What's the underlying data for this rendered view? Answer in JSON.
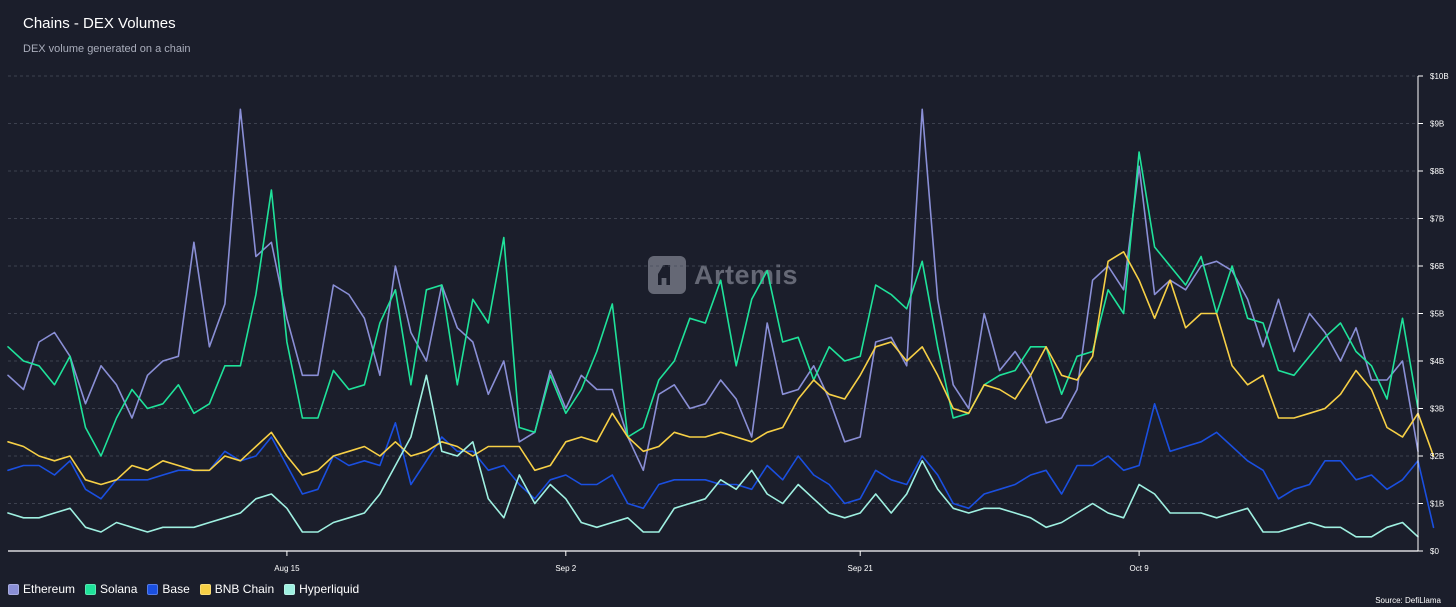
{
  "header": {
    "title": "Chains - DEX Volumes",
    "subtitle": "DEX volume generated on a chain"
  },
  "watermark": "Artemis",
  "source": "Source: DefiLlama",
  "chart_data": {
    "type": "line",
    "title": "Chains - DEX Volumes",
    "subtitle": "DEX volume generated on a chain",
    "xlabel": "",
    "ylabel": "",
    "ylim": [
      0,
      10
    ],
    "y_unit": "$B",
    "y_ticks": [
      0,
      1,
      2,
      3,
      4,
      5,
      6,
      7,
      8,
      9,
      10
    ],
    "y_tick_labels": [
      "$0",
      "$1B",
      "$2B",
      "$3B",
      "$4B",
      "$5B",
      "$6B",
      "$7B",
      "$8B",
      "$9B",
      "$10B"
    ],
    "x_ticks": [
      {
        "index": 18,
        "label": "Aug 15"
      },
      {
        "index": 36,
        "label": "Sep 2"
      },
      {
        "index": 55,
        "label": "Sep 21"
      },
      {
        "index": 73,
        "label": "Oct 9"
      }
    ],
    "grid": true,
    "legend_position": "bottom-left",
    "series": [
      {
        "name": "Ethereum",
        "color": "#8a8fd6",
        "values": [
          3.7,
          3.4,
          4.4,
          4.6,
          4.1,
          3.1,
          3.9,
          3.5,
          2.8,
          3.7,
          4.0,
          4.1,
          6.5,
          4.3,
          5.2,
          9.3,
          6.2,
          6.5,
          4.9,
          3.7,
          3.7,
          5.6,
          5.4,
          4.9,
          3.7,
          6.0,
          4.6,
          4.0,
          5.6,
          4.7,
          4.4,
          3.3,
          4.0,
          2.3,
          2.5,
          3.8,
          3.0,
          3.7,
          3.4,
          3.4,
          2.4,
          1.7,
          3.3,
          3.5,
          3.0,
          3.1,
          3.6,
          3.2,
          2.4,
          4.8,
          3.3,
          3.4,
          3.9,
          3.2,
          2.3,
          2.4,
          4.4,
          4.5,
          3.9,
          9.3,
          5.3,
          3.5,
          3.0,
          5.0,
          3.8,
          4.2,
          3.7,
          2.7,
          2.8,
          3.4,
          5.7,
          6.0,
          5.5,
          8.1,
          5.4,
          5.7,
          5.5,
          6.0,
          6.1,
          5.9,
          5.3,
          4.3,
          5.3,
          4.2,
          5.0,
          4.6,
          4.0,
          4.7,
          3.6,
          3.6,
          4.0,
          2.1
        ]
      },
      {
        "name": "Solana",
        "color": "#1fe29a",
        "values": [
          4.3,
          4.0,
          3.9,
          3.5,
          4.1,
          2.6,
          2.0,
          2.8,
          3.4,
          3.0,
          3.1,
          3.5,
          2.9,
          3.1,
          3.9,
          3.9,
          5.4,
          7.6,
          4.4,
          2.8,
          2.8,
          3.8,
          3.4,
          3.5,
          4.8,
          5.5,
          3.5,
          5.5,
          5.6,
          3.5,
          5.3,
          4.8,
          6.6,
          2.6,
          2.5,
          3.7,
          2.9,
          3.4,
          4.2,
          5.2,
          2.4,
          2.6,
          3.6,
          4.0,
          4.9,
          4.8,
          5.7,
          3.9,
          5.3,
          5.9,
          4.4,
          4.5,
          3.6,
          4.3,
          4.0,
          4.1,
          5.6,
          5.4,
          5.1,
          6.1,
          4.3,
          2.8,
          2.9,
          3.5,
          3.7,
          3.8,
          4.3,
          4.3,
          3.3,
          4.1,
          4.2,
          5.5,
          5.0,
          8.4,
          6.4,
          6.0,
          5.6,
          6.2,
          5.0,
          6.0,
          4.9,
          4.8,
          3.8,
          3.7,
          4.1,
          4.5,
          4.8,
          4.2,
          3.9,
          3.2,
          4.9,
          3.0
        ]
      },
      {
        "name": "Base",
        "color": "#1a4fe0",
        "values": [
          1.7,
          1.8,
          1.8,
          1.6,
          1.9,
          1.3,
          1.1,
          1.5,
          1.5,
          1.5,
          1.6,
          1.7,
          1.7,
          1.7,
          2.1,
          1.9,
          2.0,
          2.4,
          1.8,
          1.2,
          1.3,
          2.0,
          1.8,
          1.9,
          1.8,
          2.7,
          1.4,
          1.9,
          2.4,
          2.1,
          2.1,
          1.7,
          1.8,
          1.4,
          1.1,
          1.5,
          1.6,
          1.4,
          1.4,
          1.6,
          1.0,
          0.9,
          1.4,
          1.5,
          1.5,
          1.5,
          1.4,
          1.4,
          1.3,
          1.8,
          1.5,
          2.0,
          1.6,
          1.4,
          1.0,
          1.1,
          1.7,
          1.5,
          1.4,
          2.0,
          1.6,
          1.0,
          0.9,
          1.2,
          1.3,
          1.4,
          1.6,
          1.7,
          1.2,
          1.8,
          1.8,
          2.0,
          1.7,
          1.8,
          3.1,
          2.1,
          2.2,
          2.3,
          2.5,
          2.2,
          1.9,
          1.7,
          1.1,
          1.3,
          1.4,
          1.9,
          1.9,
          1.5,
          1.6,
          1.3,
          1.5,
          1.9,
          0.5
        ]
      },
      {
        "name": "BNB Chain",
        "color": "#f7d046",
        "values": [
          2.3,
          2.2,
          2.0,
          1.9,
          2.0,
          1.5,
          1.4,
          1.5,
          1.8,
          1.7,
          1.9,
          1.8,
          1.7,
          1.7,
          2.0,
          1.9,
          2.2,
          2.5,
          2.0,
          1.6,
          1.7,
          2.0,
          2.1,
          2.2,
          2.0,
          2.3,
          2.0,
          2.1,
          2.3,
          2.2,
          2.0,
          2.2,
          2.2,
          2.2,
          1.7,
          1.8,
          2.3,
          2.4,
          2.3,
          2.9,
          2.4,
          2.1,
          2.2,
          2.5,
          2.4,
          2.4,
          2.5,
          2.4,
          2.3,
          2.5,
          2.6,
          3.2,
          3.6,
          3.3,
          3.2,
          3.7,
          4.3,
          4.4,
          4.0,
          4.3,
          3.7,
          3.0,
          2.9,
          3.5,
          3.4,
          3.2,
          3.7,
          4.3,
          3.7,
          3.6,
          4.1,
          6.1,
          6.3,
          5.7,
          4.9,
          5.7,
          4.7,
          5.0,
          5.0,
          3.9,
          3.5,
          3.7,
          2.8,
          2.8,
          2.9,
          3.0,
          3.3,
          3.8,
          3.4,
          2.6,
          2.4,
          2.9,
          2.0
        ]
      },
      {
        "name": "Hyperliquid",
        "color": "#9ff0e1",
        "values": [
          0.8,
          0.7,
          0.7,
          0.8,
          0.9,
          0.5,
          0.4,
          0.6,
          0.5,
          0.4,
          0.5,
          0.5,
          0.5,
          0.6,
          0.7,
          0.8,
          1.1,
          1.2,
          0.9,
          0.4,
          0.4,
          0.6,
          0.7,
          0.8,
          1.2,
          1.8,
          2.4,
          3.7,
          2.1,
          2.0,
          2.3,
          1.1,
          0.7,
          1.6,
          1.0,
          1.4,
          1.1,
          0.6,
          0.5,
          0.6,
          0.7,
          0.4,
          0.4,
          0.9,
          1.0,
          1.1,
          1.5,
          1.3,
          1.7,
          1.2,
          1.0,
          1.4,
          1.1,
          0.8,
          0.7,
          0.8,
          1.2,
          0.8,
          1.2,
          1.9,
          1.3,
          0.9,
          0.8,
          0.9,
          0.9,
          0.8,
          0.7,
          0.5,
          0.6,
          0.8,
          1.0,
          0.8,
          0.7,
          1.4,
          1.2,
          0.8,
          0.8,
          0.8,
          0.7,
          0.8,
          0.9,
          0.4,
          0.4,
          0.5,
          0.6,
          0.5,
          0.5,
          0.3,
          0.3,
          0.5,
          0.6,
          0.3
        ]
      }
    ]
  }
}
